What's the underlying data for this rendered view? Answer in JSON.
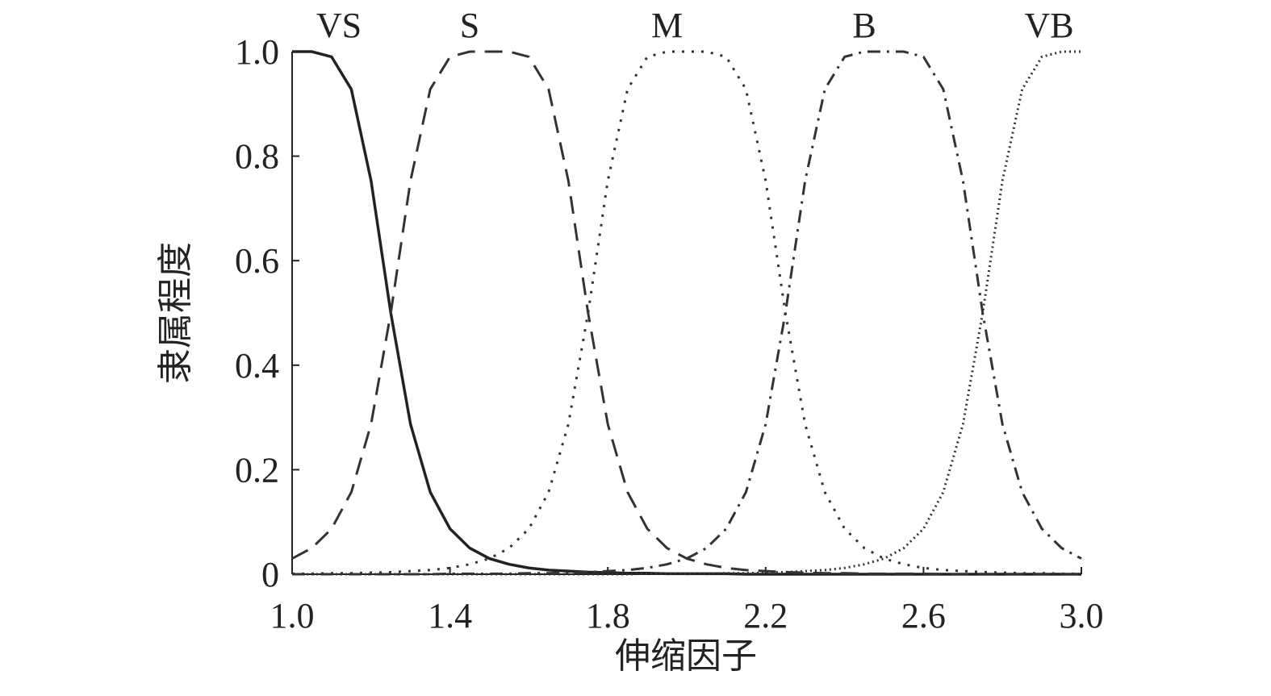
{
  "chart_data": {
    "type": "line",
    "xlabel": "伸缩因子",
    "ylabel": "隶属程度",
    "x": [
      1,
      1.05,
      1.1,
      1.15,
      1.2,
      1.25,
      1.3,
      1.35,
      1.4,
      1.45,
      1.5,
      1.55,
      1.6,
      1.65,
      1.7,
      1.75,
      1.8,
      1.85,
      1.9,
      1.95,
      2,
      2.05,
      2.1,
      2.15,
      2.2,
      2.25,
      2.3,
      2.35,
      2.4,
      2.45,
      2.5,
      2.55,
      2.6,
      2.65,
      2.7,
      2.75,
      2.8,
      2.85,
      2.9,
      2.95,
      3
    ],
    "series": [
      {
        "name": "VS",
        "color": "#222222",
        "dash": "none",
        "values": [
          1,
          1,
          0.99,
          0.928,
          0.753,
          0.5,
          0.287,
          0.157,
          0.087,
          0.05,
          0.03,
          0.019,
          0.012,
          0.008,
          0.006,
          0.004,
          0.003,
          0.002,
          0.002,
          0.001,
          0.001,
          0.001,
          0.001,
          0,
          0,
          0,
          0,
          0,
          0,
          0,
          0,
          0,
          0,
          0,
          0,
          0,
          0,
          0,
          0,
          0,
          0
        ]
      },
      {
        "name": "S",
        "color": "#333333",
        "dash": "22 12",
        "values": [
          0.03,
          0.05,
          0.087,
          0.157,
          0.287,
          0.5,
          0.753,
          0.928,
          0.99,
          1,
          1,
          1,
          0.99,
          0.928,
          0.753,
          0.5,
          0.287,
          0.157,
          0.087,
          0.05,
          0.03,
          0.019,
          0.012,
          0.008,
          0.006,
          0.004,
          0.003,
          0.002,
          0.002,
          0.001,
          0.001,
          0.001,
          0.001,
          0,
          0,
          0,
          0,
          0,
          0,
          0,
          0
        ]
      },
      {
        "name": "M",
        "color": "#333333",
        "dash": "3 9",
        "values": [
          0.001,
          0.001,
          0.002,
          0.002,
          0.003,
          0.004,
          0.006,
          0.008,
          0.012,
          0.019,
          0.03,
          0.05,
          0.087,
          0.157,
          0.287,
          0.5,
          0.753,
          0.928,
          0.99,
          1,
          1,
          1,
          0.99,
          0.928,
          0.753,
          0.5,
          0.287,
          0.157,
          0.087,
          0.05,
          0.03,
          0.019,
          0.012,
          0.008,
          0.006,
          0.004,
          0.003,
          0.002,
          0.002,
          0.001,
          0.001
        ]
      },
      {
        "name": "B",
        "color": "#333333",
        "dash": "16 8 3 8",
        "values": [
          0,
          0,
          0,
          0,
          0,
          0,
          0,
          0,
          0.001,
          0.001,
          0.001,
          0.001,
          0.002,
          0.002,
          0.003,
          0.004,
          0.006,
          0.008,
          0.012,
          0.019,
          0.03,
          0.05,
          0.087,
          0.157,
          0.287,
          0.5,
          0.753,
          0.928,
          0.99,
          1,
          1,
          1,
          0.99,
          0.928,
          0.753,
          0.5,
          0.287,
          0.157,
          0.087,
          0.05,
          0.03
        ]
      },
      {
        "name": "VB",
        "color": "#333333",
        "dash": "2 4",
        "values": [
          0,
          0,
          0,
          0,
          0,
          0,
          0,
          0,
          0,
          0,
          0,
          0,
          0,
          0,
          0,
          0,
          0,
          0,
          0.001,
          0.001,
          0.001,
          0.001,
          0.002,
          0.002,
          0.003,
          0.004,
          0.006,
          0.008,
          0.012,
          0.019,
          0.03,
          0.05,
          0.087,
          0.157,
          0.287,
          0.5,
          0.753,
          0.928,
          0.99,
          1,
          1
        ]
      }
    ],
    "xlim": [
      1,
      3
    ],
    "xticks": [
      {
        "value": 1,
        "label": "1.0"
      },
      1.4,
      1.8,
      2.2,
      2.6,
      {
        "value": 3,
        "label": "3.0"
      }
    ],
    "ylim": [
      0,
      1
    ],
    "yticks": [
      0,
      0.2,
      0.4,
      0.6,
      0.8,
      {
        "value": 1,
        "label": "1.0"
      }
    ]
  }
}
